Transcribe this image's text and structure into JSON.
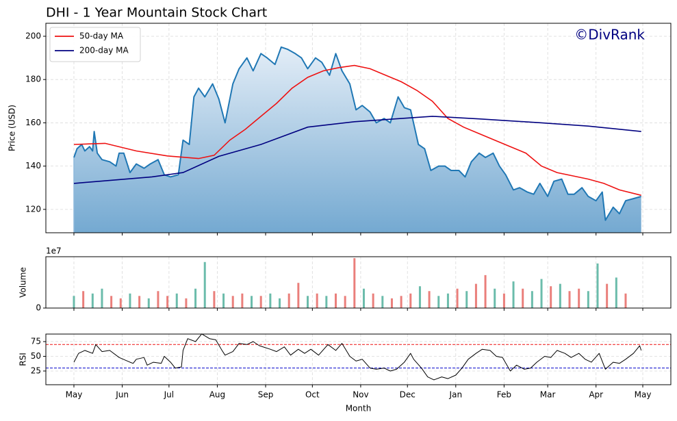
{
  "chart_data": [
    {
      "type": "line",
      "title": "DHI - 1 Year Mountain Stock Chart",
      "watermark": "©DivRank",
      "ylabel": "Price (USD)",
      "x": [
        0,
        2,
        5,
        7,
        10,
        12,
        13,
        15,
        18,
        23,
        27,
        29,
        32,
        36,
        40,
        45,
        49,
        54,
        58,
        62,
        67,
        70,
        74,
        77,
        80,
        84,
        89,
        93,
        97,
        102,
        106,
        111,
        115,
        120,
        124,
        129,
        133,
        137,
        142,
        146,
        150,
        155,
        159,
        164,
        168,
        172,
        177,
        181,
        185,
        190,
        194,
        199,
        203,
        208,
        212,
        216,
        221,
        225,
        229,
        234,
        238,
        242,
        247,
        251,
        255,
        260,
        264,
        269,
        273,
        277,
        282,
        286,
        291,
        295,
        299,
        304,
        308,
        313,
        317,
        321,
        326,
        330,
        335,
        339,
        341,
        346,
        350,
        354,
        359,
        364
      ],
      "values": [
        144,
        148,
        150,
        147,
        149,
        147,
        156,
        146,
        143,
        142,
        140,
        146,
        146,
        137,
        141,
        139,
        141,
        143,
        136,
        135,
        136,
        152,
        150,
        172,
        176,
        172,
        178,
        171,
        160,
        178,
        185,
        190,
        184,
        192,
        190,
        187,
        195,
        194,
        192,
        190,
        185,
        190,
        188,
        182,
        192,
        184,
        178,
        166,
        168,
        165,
        160,
        162,
        160,
        172,
        167,
        166,
        150,
        148,
        138,
        140,
        140,
        138,
        138,
        135,
        142,
        146,
        144,
        146,
        140,
        136,
        129,
        130,
        128,
        127,
        132,
        126,
        133,
        134,
        127,
        127,
        130,
        126,
        124,
        128,
        115,
        121,
        118,
        124,
        125,
        126
      ],
      "color": "#1f77b4",
      "fill": true,
      "series": [
        {
          "name": "50-day MA",
          "color": "#ee1111",
          "x": [
            0,
            20,
            40,
            60,
            80,
            90,
            100,
            110,
            120,
            130,
            140,
            150,
            160,
            170,
            180,
            190,
            200,
            210,
            220,
            230,
            240,
            250,
            260,
            270,
            280,
            290,
            300,
            310,
            320,
            330,
            340,
            350,
            364
          ],
          "values": [
            150,
            150.5,
            147,
            144.7,
            143.5,
            145,
            152,
            157,
            163,
            169,
            176,
            181,
            184,
            185.5,
            186.5,
            185,
            182,
            179,
            175,
            170,
            162,
            158,
            155,
            152,
            149,
            146,
            140,
            137,
            135.5,
            134,
            132,
            129,
            126.5
          ]
        },
        {
          "name": "200-day MA",
          "color": "#000080",
          "x": [
            0,
            50,
            70,
            93,
            120,
            150,
            180,
            210,
            230,
            260,
            300,
            330,
            364
          ],
          "values": [
            132,
            135,
            137,
            144.5,
            150,
            158,
            160.5,
            162,
            163,
            161.8,
            160,
            158.5,
            156
          ]
        }
      ],
      "ylim": [
        109.2,
        206
      ],
      "yticks": [
        120,
        140,
        160,
        180,
        200
      ],
      "grid": true,
      "legend": "upper left"
    },
    {
      "type": "bar",
      "ylabel": "Volume",
      "offset_label": "1e7",
      "x": [
        0,
        6,
        12,
        18,
        24,
        30,
        36,
        42,
        48,
        54,
        60,
        66,
        72,
        78,
        84,
        90,
        96,
        102,
        108,
        114,
        120,
        126,
        132,
        138,
        144,
        150,
        156,
        162,
        168,
        174,
        180,
        186,
        192,
        198,
        204,
        210,
        216,
        222,
        228,
        234,
        240,
        246,
        252,
        258,
        264,
        270,
        276,
        282,
        288,
        294,
        300,
        306,
        312,
        318,
        324,
        330,
        336,
        342,
        348,
        354
      ],
      "values": [
        2500000,
        3500000,
        3000000,
        4000000,
        2500000,
        2000000,
        3000000,
        2500000,
        2000000,
        3500000,
        2500000,
        3000000,
        2000000,
        4000000,
        9500000,
        3500000,
        3000000,
        2500000,
        3000000,
        2500000,
        2500000,
        3000000,
        2000000,
        3000000,
        5200000,
        2500000,
        3000000,
        2500000,
        3000000,
        2500000,
        10300000,
        4000000,
        3000000,
        2500000,
        2000000,
        2500000,
        3000000,
        4500000,
        3500000,
        2500000,
        3000000,
        4000000,
        3500000,
        5000000,
        6800000,
        4000000,
        3000000,
        5500000,
        4000000,
        3500000,
        6000000,
        4500000,
        5000000,
        3500000,
        4000000,
        3500000,
        9200000,
        5000000,
        6300000,
        3000000
      ],
      "colors": [
        "#5bb5a2",
        "#e8716d",
        "#5bb5a2",
        "#5bb5a2",
        "#e8716d",
        "#e8716d",
        "#5bb5a2",
        "#e8716d",
        "#5bb5a2",
        "#e8716d",
        "#e8716d",
        "#5bb5a2",
        "#e8716d",
        "#5bb5a2",
        "#5bb5a2",
        "#e8716d",
        "#5bb5a2",
        "#e8716d",
        "#e8716d",
        "#5bb5a2",
        "#e8716d",
        "#5bb5a2",
        "#5bb5a2",
        "#e8716d",
        "#e8716d",
        "#5bb5a2",
        "#e8716d",
        "#5bb5a2",
        "#e8716d",
        "#e8716d",
        "#e8716d",
        "#5bb5a2",
        "#e8716d",
        "#5bb5a2",
        "#e8716d",
        "#e8716d",
        "#e8716d",
        "#5bb5a2",
        "#e8716d",
        "#5bb5a2",
        "#5bb5a2",
        "#e8716d",
        "#5bb5a2",
        "#e8716d",
        "#e8716d",
        "#5bb5a2",
        "#e8716d",
        "#5bb5a2",
        "#e8716d",
        "#5bb5a2",
        "#5bb5a2",
        "#e8716d",
        "#5bb5a2",
        "#e8716d",
        "#e8716d",
        "#5bb5a2",
        "#5bb5a2",
        "#e8716d",
        "#5bb5a2",
        "#e8716d"
      ],
      "ylim": [
        0,
        10600000
      ],
      "yticks": [
        0
      ],
      "grid": true
    },
    {
      "type": "line",
      "ylabel": "RSI",
      "xlabel": "Month",
      "x": [
        0,
        3,
        7,
        12,
        14,
        18,
        23,
        29,
        36,
        38,
        40,
        45,
        47,
        51,
        56,
        58,
        62,
        65,
        69,
        70,
        73,
        78,
        82,
        87,
        91,
        95,
        97,
        102,
        106,
        111,
        115,
        119,
        126,
        130,
        135,
        139,
        144,
        148,
        152,
        157,
        163,
        168,
        172,
        177,
        181,
        185,
        190,
        194,
        199,
        203,
        207,
        212,
        216,
        218,
        223,
        227,
        231,
        236,
        240,
        245,
        249,
        253,
        258,
        262,
        267,
        271,
        275,
        280,
        284,
        289,
        293,
        297,
        302,
        306,
        310,
        315,
        319,
        324,
        328,
        332,
        337,
        341,
        346,
        350,
        354,
        359,
        363,
        364
      ],
      "values": [
        40,
        55,
        60,
        55,
        70,
        58,
        60,
        48,
        40,
        38,
        45,
        48,
        35,
        40,
        38,
        50,
        40,
        30,
        32,
        60,
        80,
        75,
        88,
        80,
        78,
        60,
        52,
        58,
        72,
        70,
        75,
        68,
        62,
        58,
        66,
        52,
        62,
        55,
        62,
        52,
        70,
        60,
        72,
        50,
        42,
        45,
        30,
        28,
        30,
        25,
        28,
        40,
        55,
        45,
        30,
        15,
        10,
        15,
        12,
        18,
        30,
        45,
        55,
        62,
        60,
        50,
        48,
        25,
        35,
        28,
        30,
        40,
        50,
        48,
        60,
        55,
        48,
        55,
        45,
        40,
        55,
        28,
        40,
        38,
        45,
        55,
        68,
        60
      ],
      "color": "#000000",
      "reference_lines": [
        {
          "value": 70,
          "color": "#ee1111"
        },
        {
          "value": 30,
          "color": "#0000cc"
        }
      ],
      "ylim": [
        1.7,
        87.8
      ],
      "yticks": [
        25,
        50,
        75
      ],
      "grid": true,
      "xlim": [
        -18,
        383
      ],
      "xticks": [
        {
          "value": 0,
          "label": "May"
        },
        {
          "value": 31,
          "label": "Jun"
        },
        {
          "value": 61,
          "label": "Jul"
        },
        {
          "value": 92,
          "label": "Aug"
        },
        {
          "value": 123,
          "label": "Sep"
        },
        {
          "value": 153,
          "label": "Oct"
        },
        {
          "value": 184,
          "label": "Nov"
        },
        {
          "value": 214,
          "label": "Dec"
        },
        {
          "value": 245,
          "label": "Jan"
        },
        {
          "value": 276,
          "label": "Feb"
        },
        {
          "value": 304,
          "label": "Mar"
        },
        {
          "value": 335,
          "label": "Apr"
        },
        {
          "value": 365,
          "label": "May"
        }
      ]
    }
  ]
}
